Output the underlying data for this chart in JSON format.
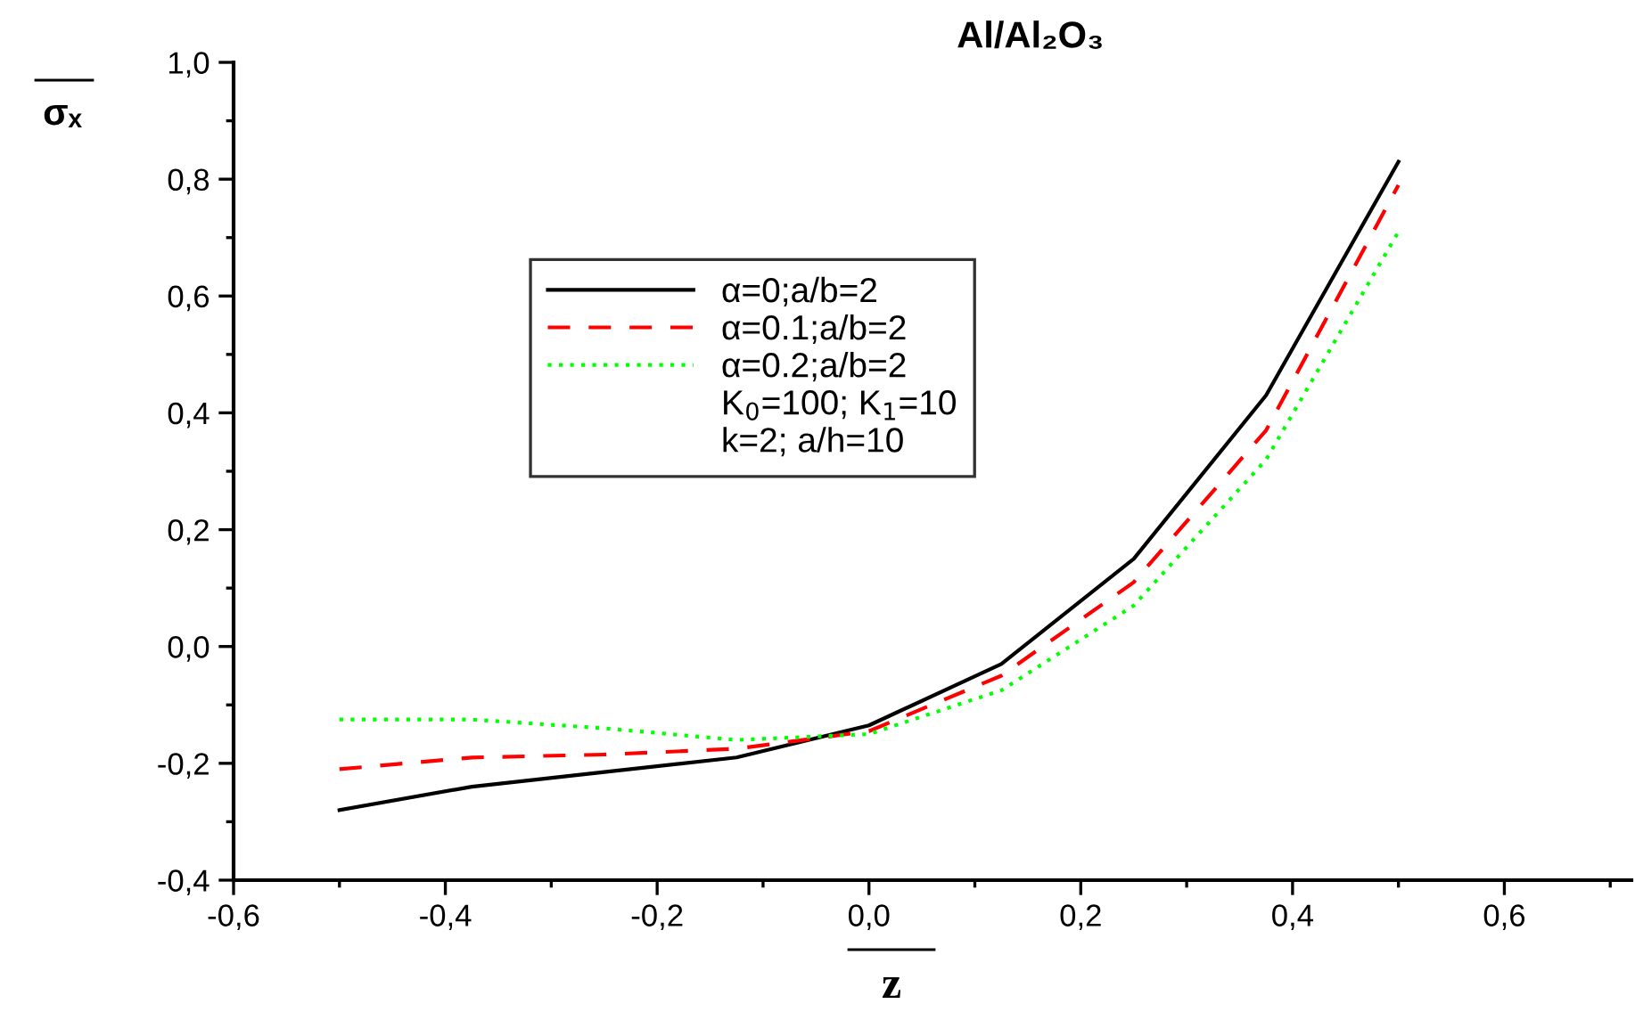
{
  "chart_data": {
    "type": "line",
    "title": "Al/Al₂O₃",
    "xlabel": "z",
    "ylabel": "σₓ",
    "x": [
      -0.5,
      -0.375,
      -0.25,
      -0.125,
      0,
      0.125,
      0.25,
      0.375,
      0.5
    ],
    "series": [
      {
        "name": "α=0;a/b=2",
        "color": "#000000",
        "line_style": "solid",
        "values": [
          -0.28,
          -0.24,
          -0.215,
          -0.19,
          -0.135,
          -0.03,
          0.15,
          0.43,
          0.83
        ]
      },
      {
        "name": "α=0.1;a/b=2",
        "color": "#ff0000",
        "line_style": "dashed",
        "values": [
          -0.21,
          -0.19,
          -0.185,
          -0.175,
          -0.145,
          -0.05,
          0.11,
          0.37,
          0.79
        ]
      },
      {
        "name": "α=0.2;a/b=2",
        "color": "#00ff00",
        "line_style": "dotted",
        "values": [
          -0.125,
          -0.125,
          -0.14,
          -0.16,
          -0.15,
          -0.075,
          0.07,
          0.32,
          0.71
        ]
      }
    ],
    "annotations": [
      "K$_{0}$=100; K$_{1}$=10",
      "k=2; a/h=10"
    ],
    "xlim": [
      -0.6,
      0.72
    ],
    "ylim": [
      -0.4,
      1.0
    ],
    "xticks": [
      {
        "value": -0.6,
        "label": "-0,6"
      },
      {
        "value": -0.4,
        "label": "-0,4"
      },
      {
        "value": -0.2,
        "label": "-0,2"
      },
      {
        "value": 0.0,
        "label": "0,0"
      },
      {
        "value": 0.2,
        "label": "0,2"
      },
      {
        "value": 0.4,
        "label": "0,4"
      },
      {
        "value": 0.6,
        "label": "0,6"
      }
    ],
    "yticks": [
      {
        "value": -0.4,
        "label": "-0,4"
      },
      {
        "value": -0.2,
        "label": "-0,2"
      },
      {
        "value": 0.0,
        "label": "0,0"
      },
      {
        "value": 0.2,
        "label": "0,2"
      },
      {
        "value": 0.4,
        "label": "0,4"
      },
      {
        "value": 0.6,
        "label": "0,6"
      },
      {
        "value": 0.8,
        "label": "0,8"
      },
      {
        "value": 1.0,
        "label": "1,0"
      }
    ],
    "grid": false,
    "legend": "upper left",
    "marker": "none"
  }
}
